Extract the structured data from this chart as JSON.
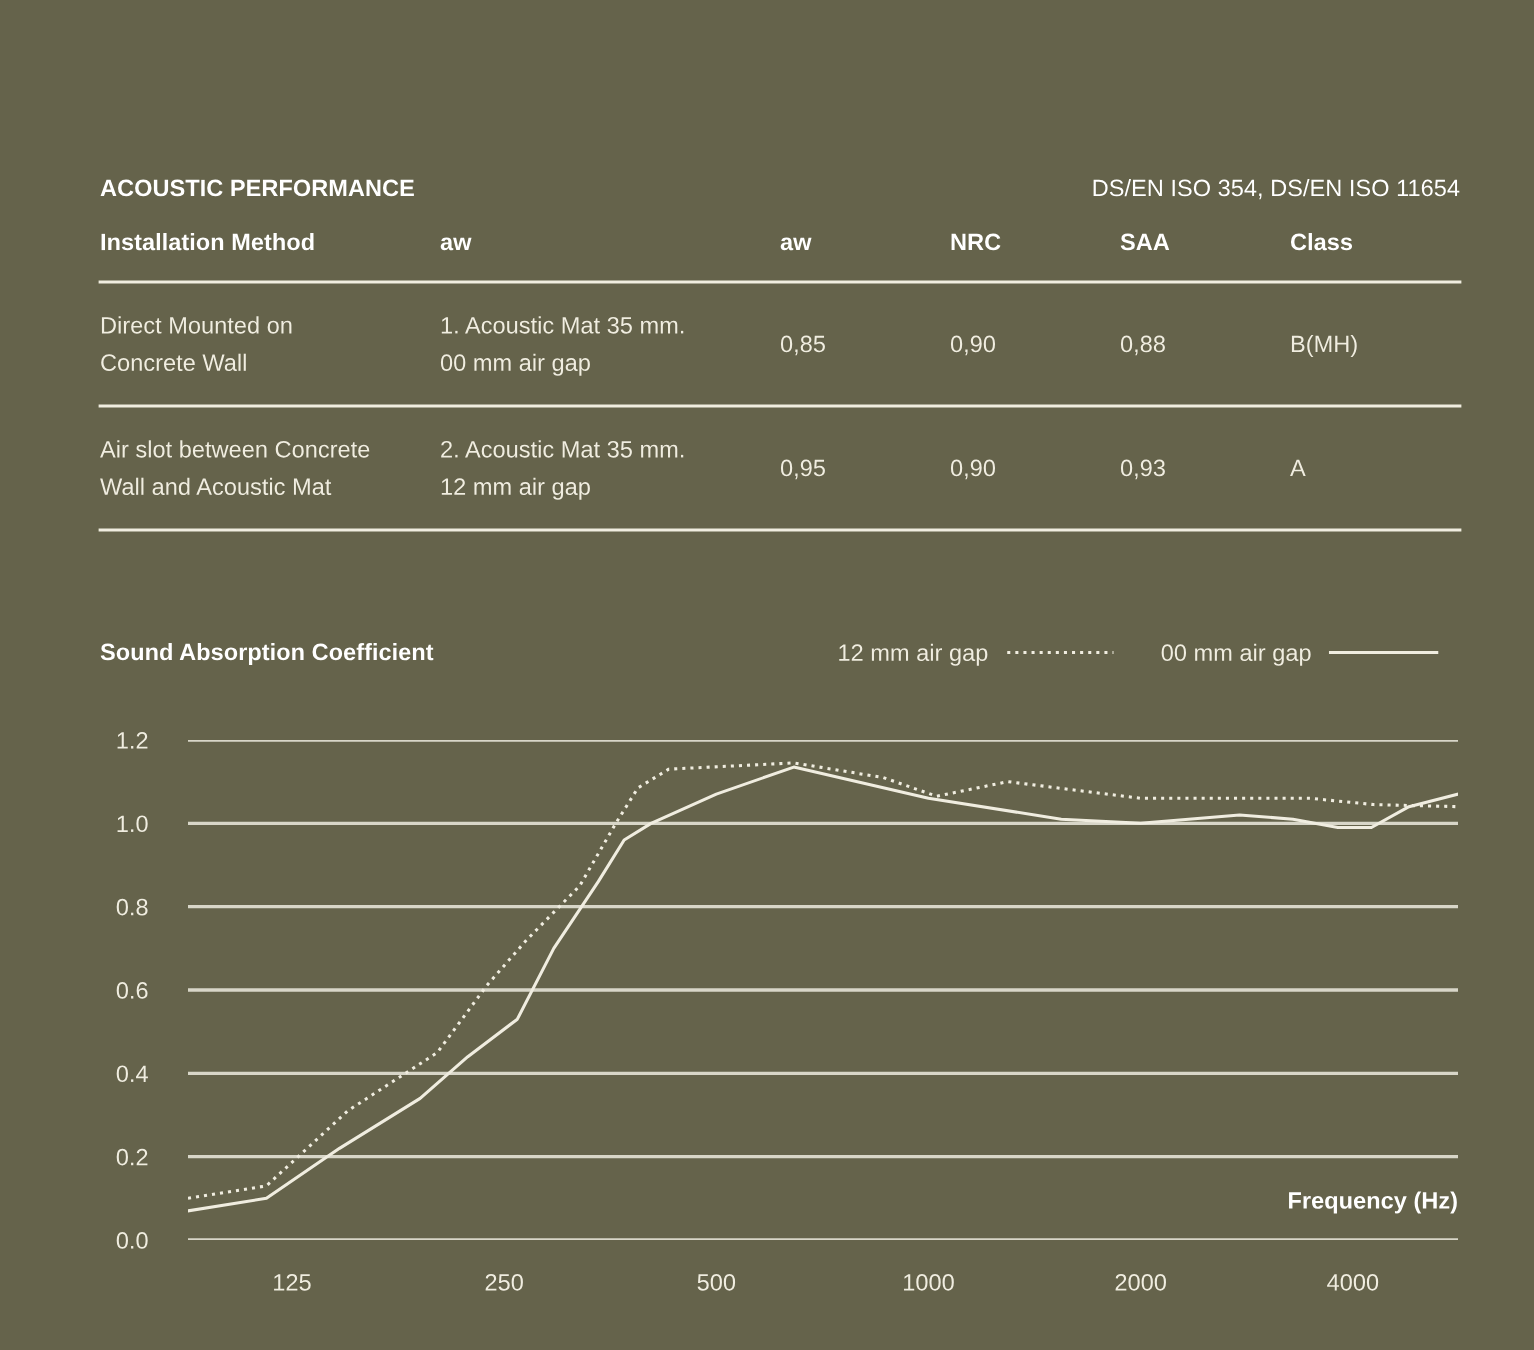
{
  "chart_data": [
    {
      "type": "other",
      "title": "ACOUSTIC PERFORMANCE",
      "subtitle": "DS/EN ISO 354, DS/EN ISO 11654",
      "categories": [
        "Installation Method",
        "aw",
        "aw",
        "NRC",
        "SAA",
        "Class"
      ],
      "cell_labels": [
        [
          "Direct Mounted on\nConcrete Wall",
          "1. Acoustic Mat 35 mm.\n00 mm air gap",
          "0,85",
          "0,90",
          "0,88",
          "B(MH)"
        ],
        [
          "Air slot between Concrete\nWall and Acoustic Mat",
          "2. Acoustic Mat 35 mm.\n12 mm air gap",
          "0,95",
          "0,90",
          "0,93",
          "A"
        ]
      ]
    },
    {
      "type": "line",
      "title": "Sound Absorption Coefficient",
      "xlabel": "Frequency (Hz)",
      "log": "x",
      "xlim": [
        89,
        5640
      ],
      "xticks": [
        125,
        250,
        500,
        1000,
        2000,
        4000
      ],
      "ylim": [
        0,
        1.2
      ],
      "yticks": [
        {
          "value": 0,
          "label": "0.0"
        },
        0.2,
        0.4,
        0.6,
        0.8,
        {
          "value": 1,
          "label": "1.0"
        },
        1.2
      ],
      "grid": "y",
      "legend": "top right",
      "series": [
        {
          "name": "12 mm air gap",
          "color": "#f0ede0",
          "line_style": "dotted",
          "x": [
            89,
            115,
            150,
            201,
            236,
            269,
            320,
            360,
            387,
            428,
            644,
            862,
            1027,
            1296,
            2000,
            3480,
            4280,
            5640
          ],
          "values": [
            0.1,
            0.13,
            0.31,
            0.45,
            0.61,
            0.72,
            0.85,
            1.0,
            1.085,
            1.13,
            1.145,
            1.11,
            1.065,
            1.1,
            1.06,
            1.06,
            1.045,
            1.04
          ]
        },
        {
          "name": "00 mm air gap",
          "color": "#f0ede0",
          "line_style": "solid",
          "x": [
            89,
            115,
            146,
            190,
            222,
            261,
            294,
            340,
            370,
            404,
            500,
            644,
            1000,
            1543,
            2000,
            2763,
            3290,
            3810,
            4250,
            4805,
            5640
          ],
          "values": [
            0.07,
            0.1,
            0.22,
            0.34,
            0.44,
            0.53,
            0.7,
            0.86,
            0.96,
            1.0,
            1.07,
            1.135,
            1.06,
            1.01,
            1.0,
            1.02,
            1.01,
            0.99,
            0.99,
            1.04,
            1.07
          ]
        }
      ]
    }
  ]
}
